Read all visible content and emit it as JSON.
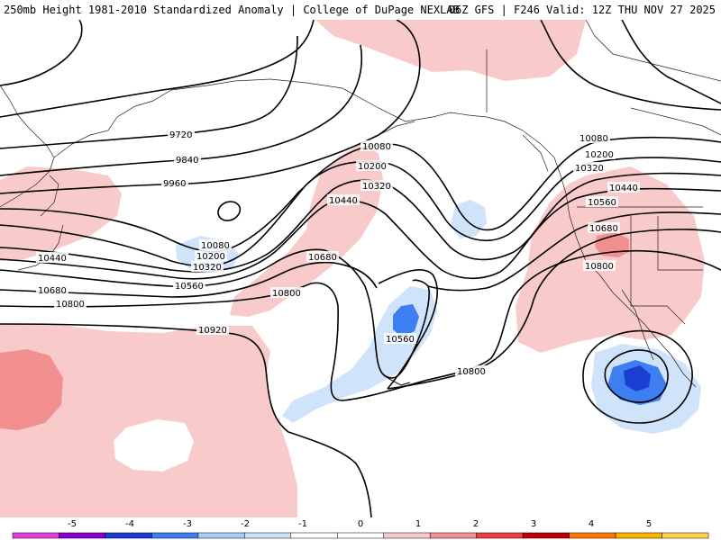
{
  "header": {
    "title": "250mb Height 1981-2010 Standardized Anomaly | College of DuPage NEXLAB",
    "run_info": "06Z GFS | F246 Valid: 12Z THU NOV 27 2025"
  },
  "contour_labels": {
    "l9720": "9720",
    "l9840": "9840",
    "l9960": "9960",
    "l10080a": "10080",
    "l10200a": "10200",
    "l10320a": "10320",
    "l10440a": "10440",
    "l10680a": "10680",
    "l10800a": "10800",
    "l10920": "10920",
    "l10080b": "10080",
    "l10200b": "10200",
    "l10320b": "10320",
    "l10440b": "10440",
    "l10560a": "10560",
    "l10680b": "10680",
    "l10800b": "10800",
    "l10560b": "10560",
    "l10800c": "10800",
    "l10080c": "10080",
    "l10200c": "10200",
    "l10320c": "10320",
    "l10440c": "10440",
    "l10560c": "10560",
    "l10680c": "10680",
    "l10800d": "10800"
  },
  "colorbar": {
    "ticks": [
      "-5",
      "-4",
      "-3",
      "-2",
      "-1",
      "0",
      "1",
      "2",
      "3",
      "4",
      "5"
    ],
    "colors": [
      "#e040e0",
      "#8a00c8",
      "#1a3fd0",
      "#3d7ef0",
      "#a9cbf5",
      "#cfe3fa",
      "#ffffff",
      "#ffffff",
      "#f9caca",
      "#f29090",
      "#e84040",
      "#c00000",
      "#ff7700",
      "#ffb000",
      "#ffd24a"
    ]
  }
}
